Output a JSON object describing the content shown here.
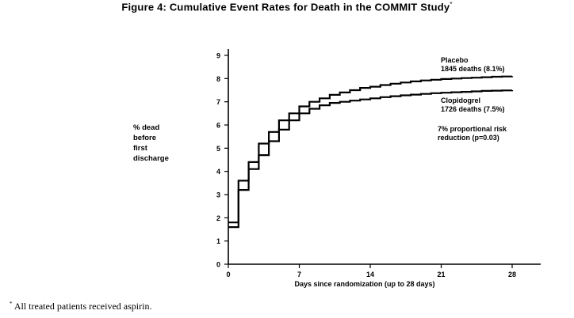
{
  "figure": {
    "title": "Figure 4: Cumulative Event Rates for Death in the COMMIT Study",
    "title_mark": "*",
    "footnote_mark": "*",
    "footnote": "All treated patients received aspirin."
  },
  "chart_data": {
    "type": "line",
    "step": true,
    "xlabel": "Days since randomization (up to 28 days)",
    "ylabel_lines": [
      "% dead",
      "before",
      "first",
      "discharge"
    ],
    "xlim": [
      0,
      28
    ],
    "ylim": [
      0,
      9
    ],
    "x_ticks": [
      0,
      7,
      14,
      21,
      28
    ],
    "y_ticks": [
      0,
      1,
      2,
      3,
      4,
      5,
      6,
      7,
      8,
      9
    ],
    "grid": false,
    "series": [
      {
        "name": "Placebo",
        "label_lines": [
          "Placebo",
          "1845 deaths (8.1%)"
        ],
        "x": [
          0,
          1,
          2,
          3,
          4,
          5,
          6,
          7,
          8,
          9,
          10,
          11,
          12,
          13,
          14,
          15,
          16,
          17,
          18,
          19,
          20,
          21,
          22,
          23,
          24,
          25,
          26,
          27,
          28
        ],
        "y": [
          1.6,
          3.6,
          4.4,
          5.2,
          5.7,
          6.2,
          6.5,
          6.8,
          7.0,
          7.15,
          7.3,
          7.4,
          7.5,
          7.6,
          7.65,
          7.72,
          7.78,
          7.83,
          7.88,
          7.92,
          7.95,
          7.98,
          8.0,
          8.02,
          8.04,
          8.06,
          8.08,
          8.09,
          8.1
        ]
      },
      {
        "name": "Clopidogrel",
        "label_lines": [
          "Clopidogrel",
          "1726 deaths (7.5%)"
        ],
        "x": [
          0,
          1,
          2,
          3,
          4,
          5,
          6,
          7,
          8,
          9,
          10,
          11,
          12,
          13,
          14,
          15,
          16,
          17,
          18,
          19,
          20,
          21,
          22,
          23,
          24,
          25,
          26,
          27,
          28
        ],
        "y": [
          1.8,
          3.2,
          4.1,
          4.7,
          5.3,
          5.8,
          6.2,
          6.5,
          6.7,
          6.85,
          6.95,
          7.0,
          7.05,
          7.1,
          7.15,
          7.2,
          7.24,
          7.28,
          7.31,
          7.34,
          7.37,
          7.39,
          7.41,
          7.43,
          7.45,
          7.47,
          7.48,
          7.49,
          7.5
        ]
      }
    ],
    "annotation_lines": [
      "7% proportional risk",
      "reduction (p=0.03)"
    ]
  }
}
